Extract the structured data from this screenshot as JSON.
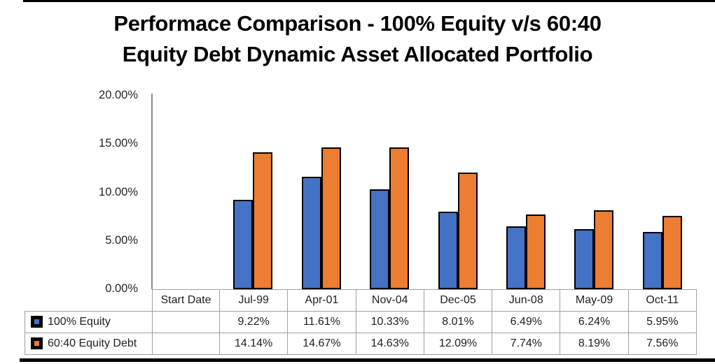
{
  "title": {
    "lines": [
      "Performace Comparison - 100% Equity v/s 60:40",
      "Equity Debt Dynamic Asset Allocated Portfolio"
    ]
  },
  "chart_data": {
    "type": "bar",
    "title": "Performace Comparison - 100% Equity v/s 60:40 Equity Debt Dynamic Asset Allocated Portfolio",
    "x_header": "Start Date",
    "categories": [
      "Jul-99",
      "Apr-01",
      "Nov-04",
      "Dec-05",
      "Jun-08",
      "May-09",
      "Oct-11"
    ],
    "series": [
      {
        "name": "100% Equity",
        "color": "#4472C4",
        "values": [
          9.22,
          11.61,
          10.33,
          8.01,
          6.49,
          6.24,
          5.95
        ],
        "value_labels": [
          "9.22%",
          "11.61%",
          "10.33%",
          "8.01%",
          "6.49%",
          "6.24%",
          "5.95%"
        ]
      },
      {
        "name": "60:40 Equity Debt",
        "color": "#ED7D31",
        "values": [
          14.14,
          14.67,
          14.63,
          12.09,
          7.74,
          8.19,
          7.56
        ],
        "value_labels": [
          "14.14%",
          "14.67%",
          "14.63%",
          "12.09%",
          "7.74%",
          "8.19%",
          "7.56%"
        ]
      }
    ],
    "y_axis": {
      "tick_labels": [
        "20.00%",
        "15.00%",
        "10.00%",
        "5.00%",
        "0.00%"
      ],
      "min": 0,
      "max": 20,
      "unit": "%"
    },
    "grid": false,
    "legend_position": "data-table-left",
    "bar_border_color": "#000000"
  },
  "colors": {
    "series_blue": "#4472C4",
    "series_orange": "#ED7D31",
    "table_border": "#a0a0a0",
    "axis_line": "#8c8c8c",
    "rule_line": "#000000"
  }
}
